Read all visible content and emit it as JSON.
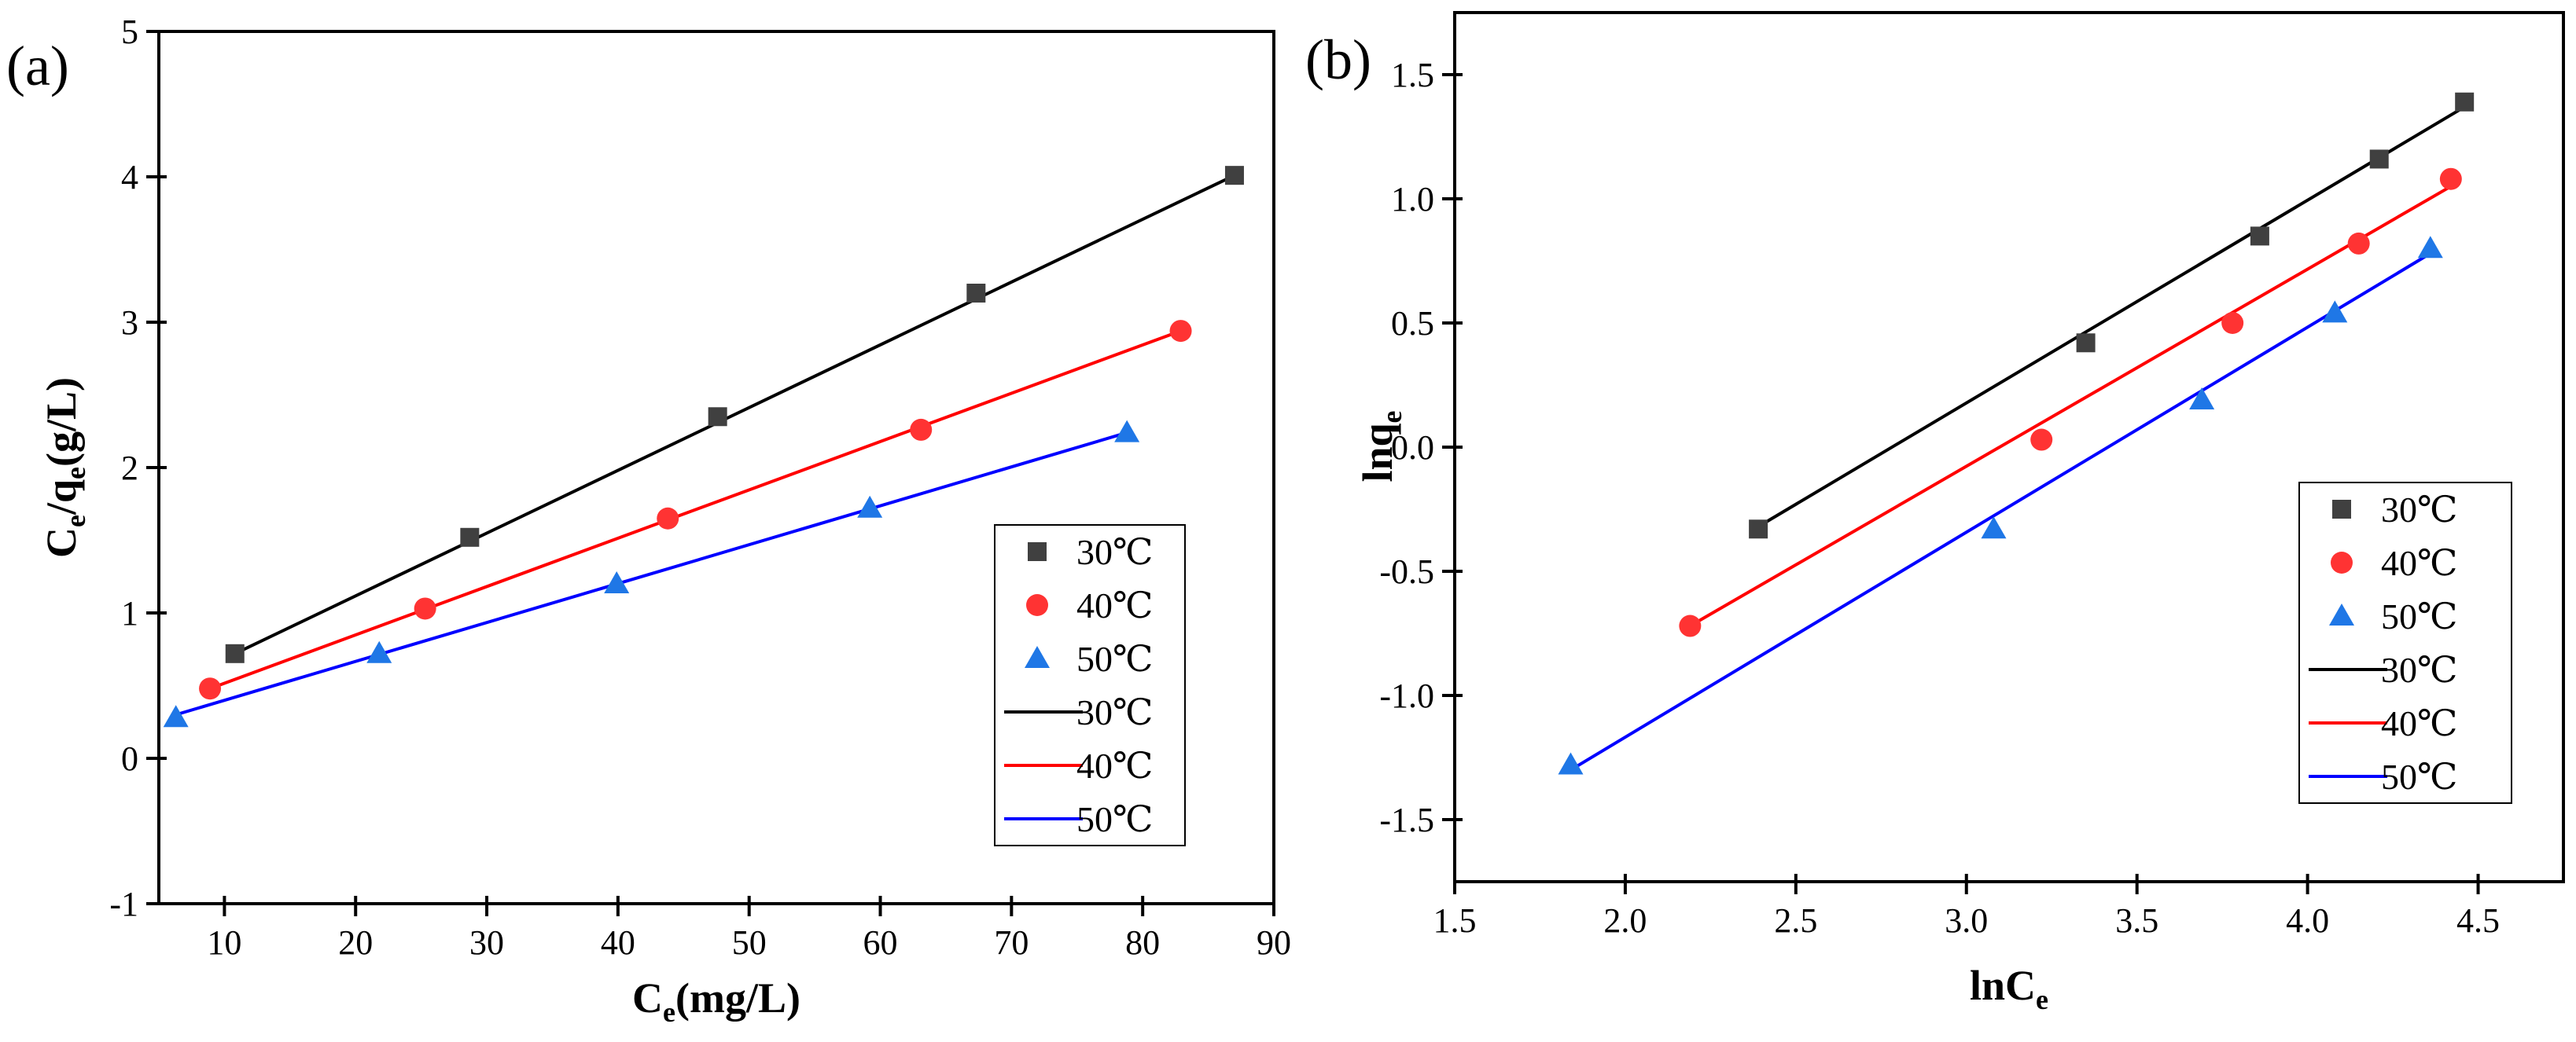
{
  "chart_data": [
    {
      "type": "scatter",
      "panel_label": "(a)",
      "xlabel": {
        "main": "C",
        "sub": "e",
        "rest": "(mg/L)"
      },
      "ylabel": {
        "main": "C",
        "sub": "e",
        "mid": "/q",
        "sub2": "e",
        "rest": "(g/L)"
      },
      "xlim": [
        5,
        90
      ],
      "ylim": [
        -1,
        5
      ],
      "xticks": [
        10,
        20,
        30,
        40,
        50,
        60,
        70,
        80,
        90
      ],
      "yticks": [
        -1,
        0,
        1,
        2,
        3,
        4,
        5
      ],
      "legend_position": "lower-right",
      "series": [
        {
          "name": "30℃",
          "color": "#404040",
          "marker": "square",
          "x": [
            10.8,
            28.7,
            47.6,
            67.3,
            87.0
          ],
          "y": [
            0.72,
            1.52,
            2.35,
            3.2,
            4.01
          ]
        },
        {
          "name": "40℃",
          "color": "#ff3333",
          "marker": "circle",
          "x": [
            8.9,
            25.3,
            43.8,
            63.1,
            82.9
          ],
          "y": [
            0.48,
            1.03,
            1.65,
            2.26,
            2.94
          ]
        },
        {
          "name": "50℃",
          "color": "#1f77e6",
          "marker": "triangle",
          "x": [
            6.3,
            21.8,
            39.9,
            59.2,
            78.8
          ],
          "y": [
            0.28,
            0.72,
            1.2,
            1.72,
            2.24
          ]
        }
      ],
      "fits": [
        {
          "name": "30℃",
          "color": "#000000",
          "x": [
            10.8,
            87.0
          ],
          "y": [
            0.72,
            4.01
          ]
        },
        {
          "name": "40℃",
          "color": "#ff0000",
          "x": [
            8.9,
            82.9
          ],
          "y": [
            0.48,
            2.94
          ]
        },
        {
          "name": "50℃",
          "color": "#0000ff",
          "x": [
            6.3,
            78.8
          ],
          "y": [
            0.3,
            2.24
          ]
        }
      ]
    },
    {
      "type": "scatter",
      "panel_label": "(b)",
      "xlabel": {
        "main": "lnC",
        "sub": "e",
        "rest": ""
      },
      "ylabel": {
        "main": "lnq",
        "sub": "e",
        "mid": "",
        "sub2": "",
        "rest": ""
      },
      "xlim": [
        1.5,
        4.75
      ],
      "ylim": [
        -1.75,
        1.75
      ],
      "xticks": [
        1.5,
        2.0,
        2.5,
        3.0,
        3.5,
        4.0,
        4.5
      ],
      "xtick_labels": [
        "1.5",
        "2.0",
        "2.5",
        "3.0",
        "3.5",
        "4.0",
        "4.5"
      ],
      "yticks": [
        -1.5,
        -1.0,
        -0.5,
        0.0,
        0.5,
        1.0,
        1.5
      ],
      "ytick_labels": [
        "-1.5",
        "-1.0",
        "-0.5",
        "0.0",
        "0.5",
        "1.0",
        "1.5"
      ],
      "legend_position": "lower-right",
      "series": [
        {
          "name": "30℃",
          "color": "#404040",
          "marker": "square",
          "x": [
            2.39,
            3.35,
            3.86,
            4.21,
            4.46
          ],
          "y": [
            -0.33,
            0.42,
            0.85,
            1.16,
            1.39
          ]
        },
        {
          "name": "40℃",
          "color": "#ff3333",
          "marker": "circle",
          "x": [
            2.19,
            3.22,
            3.78,
            4.15,
            4.42
          ],
          "y": [
            -0.72,
            0.03,
            0.5,
            0.82,
            1.08
          ]
        },
        {
          "name": "50℃",
          "color": "#1f77e6",
          "marker": "triangle",
          "x": [
            1.84,
            3.08,
            3.69,
            4.08,
            4.36
          ],
          "y": [
            -1.28,
            -0.33,
            0.19,
            0.54,
            0.8
          ]
        }
      ],
      "fits": [
        {
          "name": "30℃",
          "color": "#000000",
          "x": [
            2.39,
            4.46
          ],
          "y": [
            -0.32,
            1.37
          ]
        },
        {
          "name": "40℃",
          "color": "#ff0000",
          "x": [
            2.19,
            4.42
          ],
          "y": [
            -0.72,
            1.05
          ]
        },
        {
          "name": "50℃",
          "color": "#0000ff",
          "x": [
            1.84,
            4.36
          ],
          "y": [
            -1.3,
            0.78
          ]
        }
      ]
    }
  ]
}
